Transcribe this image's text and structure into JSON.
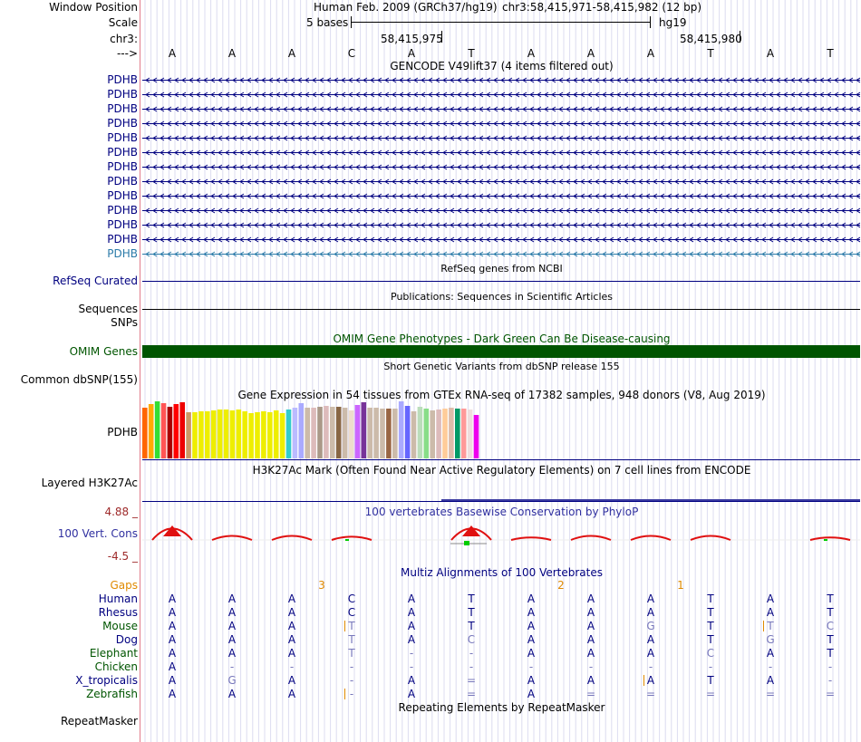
{
  "header": {
    "window_position_label": "Window Position",
    "scale_label": "Scale",
    "chrom_label": "chr3:",
    "strand_label": "--->",
    "assembly": "Human Feb. 2009 (GRCh37/hg19)",
    "position": "chr3:58,415,971-58,415,982 (12 bp)",
    "scale_text": "5 bases",
    "db": "hg19",
    "coord1": "58,415,975",
    "coord2": "58,415,980"
  },
  "bases": [
    "A",
    "A",
    "A",
    "C",
    "A",
    "T",
    "A",
    "A",
    "A",
    "T",
    "A",
    "T"
  ],
  "gencode": {
    "title": "GENCODE V49lift37 (4 items filtered out)",
    "items": [
      "PDHB",
      "PDHB",
      "PDHB",
      "PDHB",
      "PDHB",
      "PDHB",
      "PDHB",
      "PDHB",
      "PDHB",
      "PDHB",
      "PDHB",
      "PDHB",
      "PDHB"
    ]
  },
  "refseq": {
    "label": "RefSeq Curated",
    "title": "RefSeq genes from NCBI"
  },
  "pubs": {
    "label": "Sequences",
    "title": "Publications: Sequences in Scientific Articles"
  },
  "snps": {
    "label": "SNPs"
  },
  "omim": {
    "label": "OMIM Genes",
    "title": "OMIM Gene Phenotypes - Dark Green Can Be Disease-causing"
  },
  "dbsnp": {
    "label": "Common dbSNP(155)",
    "title": "Short Genetic Variants from dbSNP release 155"
  },
  "gtex": {
    "label": "PDHB",
    "title": "Gene Expression in 54 tissues from GTEx RNA-seq of 17382 samples, 948 donors (V8, Aug 2019)",
    "tissues": [
      {
        "v": 0.56,
        "c": "#ff6600"
      },
      {
        "v": 0.6,
        "c": "#ffaa00"
      },
      {
        "v": 0.63,
        "c": "#33dd33"
      },
      {
        "v": 0.61,
        "c": "#ff5555"
      },
      {
        "v": 0.57,
        "c": "#aa0000"
      },
      {
        "v": 0.6,
        "c": "#ff0000"
      },
      {
        "v": 0.62,
        "c": "#ee0000"
      },
      {
        "v": 0.51,
        "c": "#cc9966"
      },
      {
        "v": 0.51,
        "c": "#eeee00"
      },
      {
        "v": 0.52,
        "c": "#eeee00"
      },
      {
        "v": 0.52,
        "c": "#eeee00"
      },
      {
        "v": 0.53,
        "c": "#eeee00"
      },
      {
        "v": 0.54,
        "c": "#eeee00"
      },
      {
        "v": 0.54,
        "c": "#eeee00"
      },
      {
        "v": 0.53,
        "c": "#eeee00"
      },
      {
        "v": 0.54,
        "c": "#eeee00"
      },
      {
        "v": 0.52,
        "c": "#eeee00"
      },
      {
        "v": 0.5,
        "c": "#eeee00"
      },
      {
        "v": 0.51,
        "c": "#eeee00"
      },
      {
        "v": 0.52,
        "c": "#eeee00"
      },
      {
        "v": 0.51,
        "c": "#eeee00"
      },
      {
        "v": 0.53,
        "c": "#eeee00"
      },
      {
        "v": 0.5,
        "c": "#eeee00"
      },
      {
        "v": 0.54,
        "c": "#33cccc"
      },
      {
        "v": 0.56,
        "c": "#bbbbff"
      },
      {
        "v": 0.61,
        "c": "#aaaaff"
      },
      {
        "v": 0.56,
        "c": "#ccbbaa"
      },
      {
        "v": 0.56,
        "c": "#ddbbbb"
      },
      {
        "v": 0.57,
        "c": "#aa9988"
      },
      {
        "v": 0.58,
        "c": "#ddbbbb"
      },
      {
        "v": 0.57,
        "c": "#ccbbaa"
      },
      {
        "v": 0.57,
        "c": "#886644"
      },
      {
        "v": 0.56,
        "c": "#ccbbaa"
      },
      {
        "v": 0.53,
        "c": "#eeddcc"
      },
      {
        "v": 0.59,
        "c": "#cc66ff"
      },
      {
        "v": 0.62,
        "c": "#773399"
      },
      {
        "v": 0.56,
        "c": "#ccbbaa"
      },
      {
        "v": 0.56,
        "c": "#ccbbaa"
      },
      {
        "v": 0.55,
        "c": "#ccbbaa"
      },
      {
        "v": 0.55,
        "c": "#996644"
      },
      {
        "v": 0.55,
        "c": "#ccbbaa"
      },
      {
        "v": 0.63,
        "c": "#aaaaff"
      },
      {
        "v": 0.58,
        "c": "#6666ff"
      },
      {
        "v": 0.52,
        "c": "#ccbbaa"
      },
      {
        "v": 0.57,
        "c": "#bbddbb"
      },
      {
        "v": 0.55,
        "c": "#88dd88"
      },
      {
        "v": 0.53,
        "c": "#ccbbaa"
      },
      {
        "v": 0.54,
        "c": "#ddbbbb"
      },
      {
        "v": 0.55,
        "c": "#ffcc99"
      },
      {
        "v": 0.56,
        "c": "#ddbbaa"
      },
      {
        "v": 0.55,
        "c": "#009966"
      },
      {
        "v": 0.55,
        "c": "#ff9999"
      },
      {
        "v": 0.54,
        "c": "#eedddd"
      },
      {
        "v": 0.48,
        "c": "#ee00ee"
      }
    ]
  },
  "h3k27ac": {
    "label": "Layered H3K27Ac",
    "title": "H3K27Ac Mark (Often Found Near Active Regulatory Elements) on 7 cell lines from ENCODE"
  },
  "phylop": {
    "label": "100 Vert. Cons",
    "title": "100 vertebrates Basewise Conservation by PhyloP",
    "max": "4.88 _",
    "min": "-4.5 _"
  },
  "multiz": {
    "title": "Multiz Alignments of 100 Vertebrates",
    "gaps_label": "Gaps",
    "gaps": [
      {
        "col": 2.5,
        "v": "3"
      },
      {
        "col": 6.5,
        "v": "2"
      },
      {
        "col": 8.5,
        "v": "1"
      }
    ],
    "species": [
      {
        "name": "Human",
        "seq": [
          "A",
          "A",
          "A",
          "C",
          "A",
          "T",
          "A",
          "A",
          "A",
          "T",
          "A",
          "T"
        ]
      },
      {
        "name": "Rhesus",
        "seq": [
          "A",
          "A",
          "A",
          "C",
          "A",
          "T",
          "A",
          "A",
          "A",
          "T",
          "A",
          "T"
        ]
      },
      {
        "name": "Mouse",
        "seq": [
          "A",
          "A",
          "A",
          "T",
          "A",
          "T",
          "A",
          "A",
          "G",
          "T",
          "T",
          "C"
        ]
      },
      {
        "name": "Dog",
        "seq": [
          "A",
          "A",
          "A",
          "T",
          "A",
          "C",
          "A",
          "A",
          "A",
          "T",
          "G",
          "T"
        ]
      },
      {
        "name": "Elephant",
        "seq": [
          "A",
          "A",
          "A",
          "T",
          "-",
          "-",
          "A",
          "A",
          "A",
          "C",
          "A",
          "T"
        ]
      },
      {
        "name": "Chicken",
        "seq": [
          "A",
          "-",
          "-",
          "-",
          "-",
          "-",
          "-",
          "-",
          "-",
          "-",
          "-",
          "-"
        ]
      },
      {
        "name": "X_tropicalis",
        "seq": [
          "A",
          "G",
          "A",
          "-",
          "A",
          "=",
          "A",
          "A",
          "A",
          "T",
          "A",
          "-"
        ]
      },
      {
        "name": "Zebrafish",
        "seq": [
          "A",
          "A",
          "A",
          "-",
          "A",
          "=",
          "A",
          "=",
          "=",
          "=",
          "=",
          "="
        ]
      }
    ]
  },
  "repeatmasker": {
    "label": "RepeatMasker",
    "title": "Repeating Elements by RepeatMasker"
  },
  "colors": {
    "navy": "#000080",
    "omim": "#005500",
    "red": "#d10000",
    "orange": "#e08a00",
    "mauve": "#9e2a2a",
    "phylop": "#3030a0",
    "divergent": "#7777bb"
  }
}
